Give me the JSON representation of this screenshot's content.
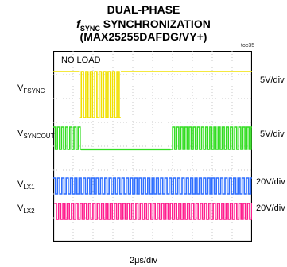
{
  "header": {
    "line1": "DUAL-PHASE",
    "line2_f": "f",
    "line2_sub": "SYNC",
    "line2_rest": " SYNCHRONIZATION",
    "line3": "(MAX25255DAFDG/VY+)",
    "tag": "toc35"
  },
  "chart_data": {
    "type": "line",
    "annotation": "NO LOAD",
    "timebase": "2μs/div",
    "grid": true,
    "divisions": {
      "x": 10,
      "y": 8
    },
    "series": [
      {
        "name": "V",
        "sub": "FSYNC",
        "scale": "5V/div",
        "color": "#f0e000",
        "pattern": "none-then-switching-then-none",
        "switching_interval_div": [
          1.3,
          3.4
        ]
      },
      {
        "name": "V",
        "sub": "SYNCOUT",
        "scale": "5V/div",
        "color": "#33dd22",
        "pattern": "switching-then-none-then-switching",
        "switching_interval_div": [
          [
            0.0,
            1.4
          ],
          [
            5.9,
            10.0
          ]
        ]
      },
      {
        "name": "V",
        "sub": "LX1",
        "scale": "20V/div",
        "color": "#2f6fff",
        "pattern": "switching",
        "switching_interval_div": [
          0.0,
          10.0
        ]
      },
      {
        "name": "V",
        "sub": "LX2",
        "scale": "20V/div",
        "color": "#ff1d8e",
        "pattern": "switching",
        "switching_interval_div": [
          0.0,
          10.0
        ]
      }
    ]
  }
}
